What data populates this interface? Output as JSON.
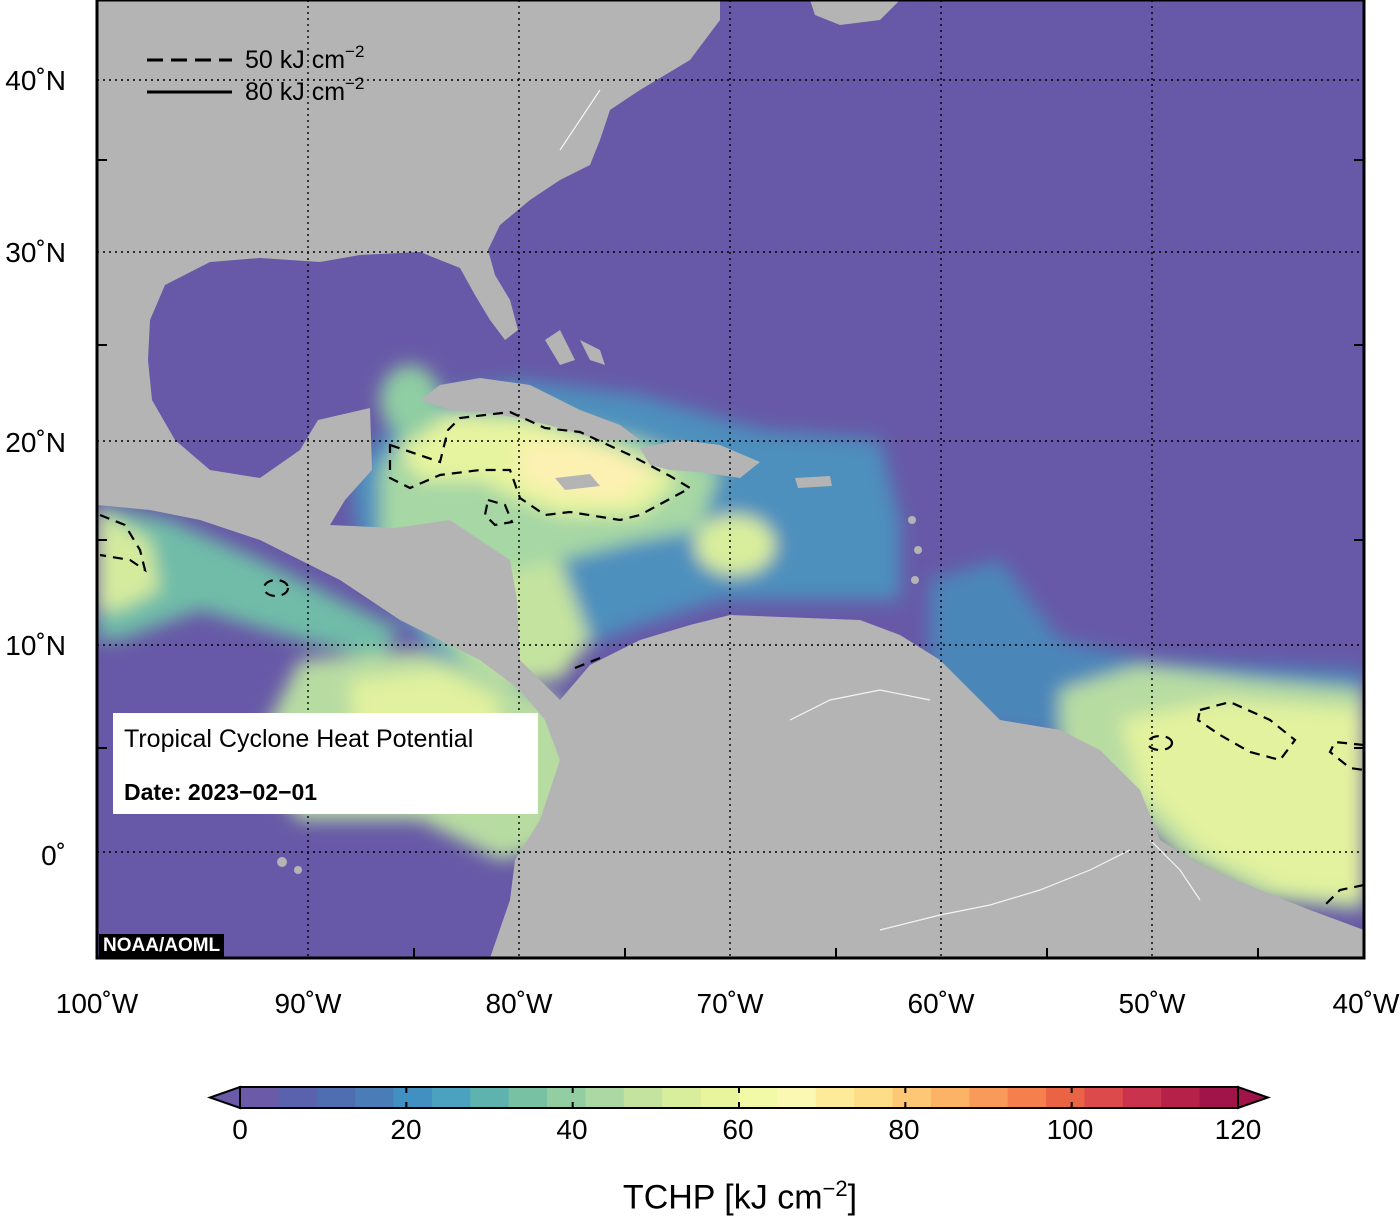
{
  "map": {
    "lon_labels": [
      "100˚W",
      "90˚W",
      "80˚W",
      "70˚W",
      "60˚W",
      "50˚W",
      "40˚W"
    ],
    "lat_labels": [
      "40˚N",
      "30˚N",
      "20˚N",
      "10˚N",
      "0˚"
    ],
    "extent": {
      "lon": [
        -100,
        -40
      ],
      "lat": [
        -5.5,
        44
      ]
    },
    "gridlines": "dotted",
    "land_color": "#b4b4b4",
    "ocean_base_color": "#6759a7"
  },
  "contour_legend": {
    "dashed_label": "50 kJ cm",
    "dashed_exp": "−2",
    "solid_label": "80 kJ cm",
    "solid_exp": "−2"
  },
  "info": {
    "title": "Tropical Cyclone Heat Potential",
    "date": "Date: 2023−02−01"
  },
  "credit": "NOAA/AOML",
  "colorbar": {
    "ticks": [
      "0",
      "20",
      "40",
      "60",
      "80",
      "100",
      "120"
    ],
    "title_main": "TCHP [kJ cm",
    "title_exp": "−2",
    "title_end": "]",
    "colors": [
      "#6a5aa8",
      "#5a61ad",
      "#4f6eb2",
      "#4a7db8",
      "#4190c1",
      "#4aa1c0",
      "#5fb3ae",
      "#78c2a3",
      "#93cda2",
      "#abd8a3",
      "#c4e39f",
      "#d9ee9c",
      "#e8f59d",
      "#f2f9a7",
      "#fbf8b4",
      "#fdeb9a",
      "#fddd87",
      "#fdc775",
      "#fdb366",
      "#fa9a5a",
      "#f57f4d",
      "#eb6345",
      "#dd4a4c",
      "#c9334d",
      "#b52148",
      "#a0144a"
    ]
  }
}
